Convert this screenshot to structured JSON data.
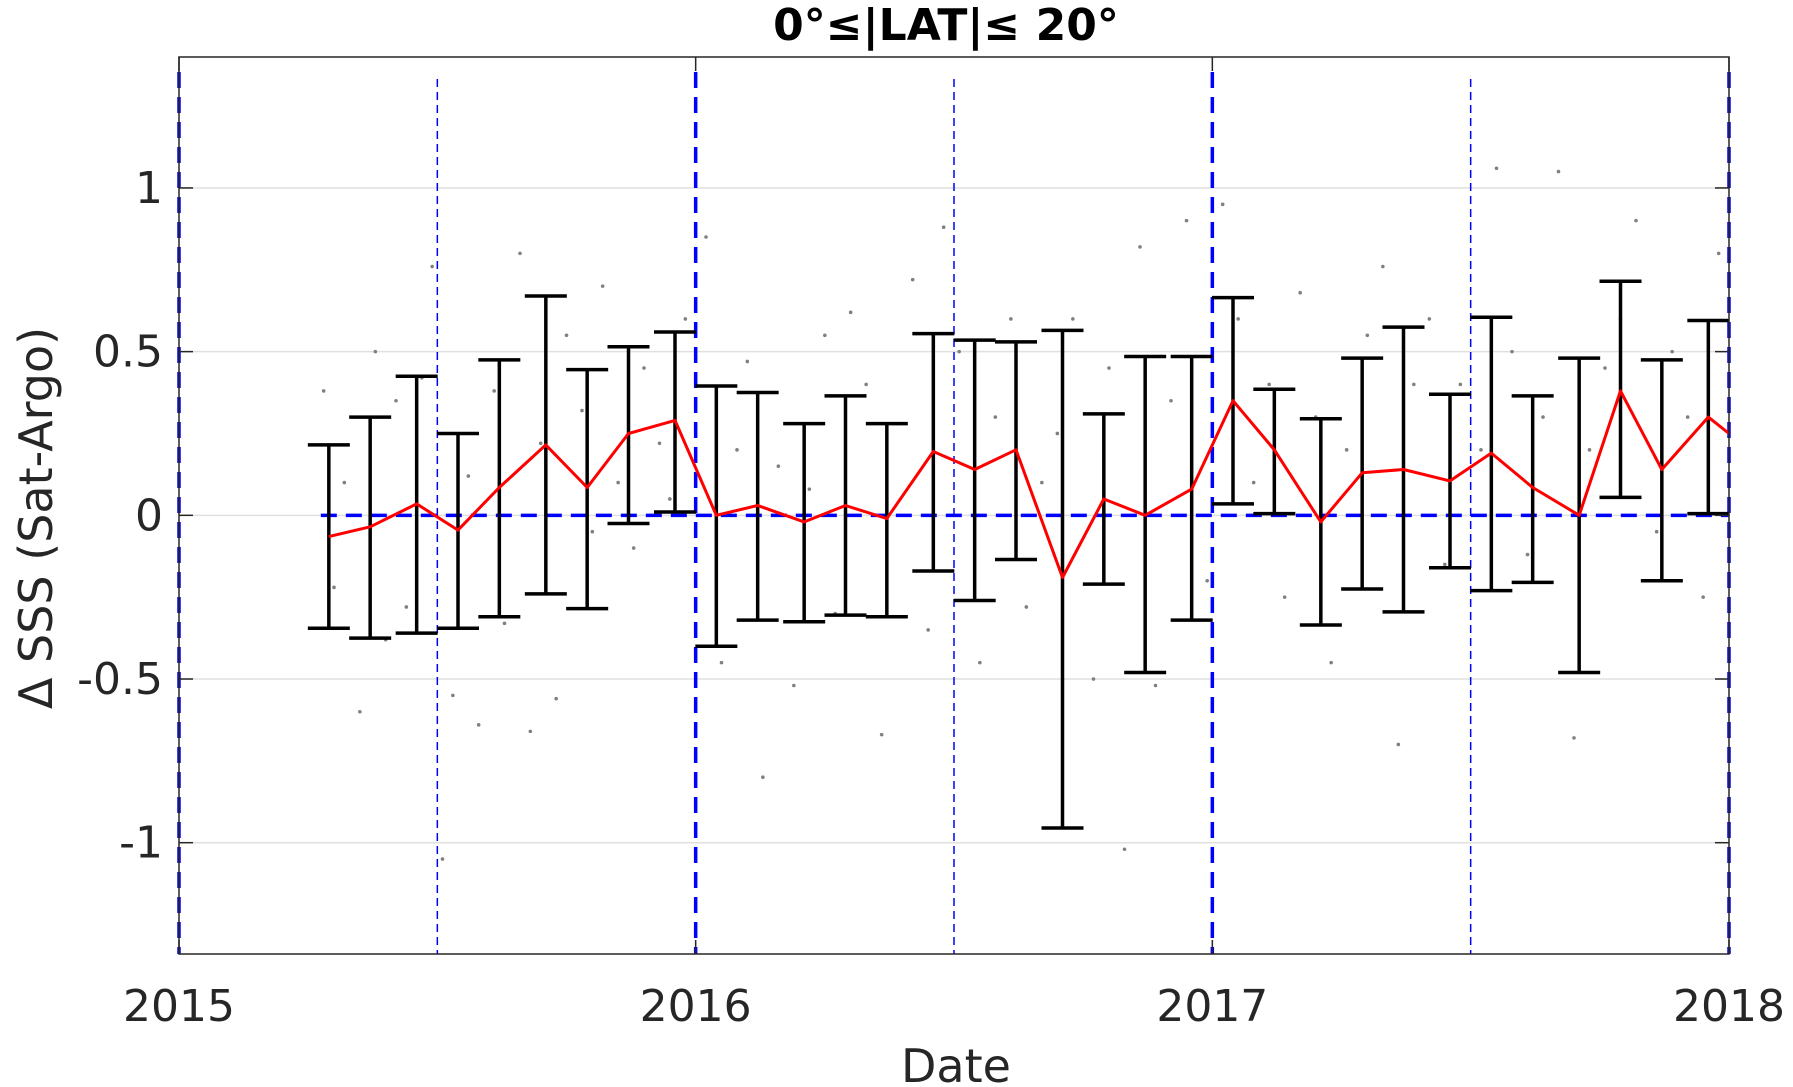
{
  "chart_data": {
    "type": "line",
    "title": "0°≤|LAT|≤ 20°",
    "xlabel": "Date",
    "ylabel": "Δ SSS (Sat-Argo)",
    "x_unit": "year",
    "xlim": [
      2015,
      2018
    ],
    "ylim": [
      -1.34,
      1.4
    ],
    "xticks": [
      2015,
      2016,
      2017,
      2018
    ],
    "xtick_labels": [
      "2015",
      "2016",
      "2017",
      "2018"
    ],
    "yticks": [
      1,
      0.5,
      0,
      -0.5,
      -1
    ],
    "ytick_labels": [
      "1",
      "0.5",
      "0",
      "-0.5",
      "-1"
    ],
    "grid": "horizontal",
    "colors": {
      "mean_line": "#ff0000",
      "error_bars": "#000000",
      "zero_line": "#0000ff",
      "year_lines": "#0000ff",
      "mid_year_lines": "#0000ff",
      "scatter_points": "#808080",
      "grid": "#e0e0e0",
      "axes": "#262626"
    },
    "series": [
      {
        "style": "line",
        "x": [
          2015.29,
          2015.37,
          2015.46,
          2015.54,
          2015.62,
          2015.71,
          2015.79,
          2015.87,
          2015.96,
          2016.04,
          2016.12,
          2016.21,
          2016.29,
          2016.37,
          2016.46,
          2016.54,
          2016.62,
          2016.71,
          2016.79,
          2016.87,
          2016.96,
          2017.04,
          2017.12,
          2017.21,
          2017.29,
          2017.37,
          2017.46,
          2017.54,
          2017.62,
          2017.71,
          2017.79,
          2017.87,
          2017.96,
          2018.0
        ],
        "y": [
          -0.065,
          -0.035,
          0.035,
          -0.045,
          0.085,
          0.215,
          0.085,
          0.25,
          0.29,
          0.0,
          0.03,
          -0.02,
          0.03,
          -0.01,
          0.195,
          0.14,
          0.2,
          -0.19,
          0.05,
          0.0,
          0.08,
          0.35,
          0.2,
          -0.02,
          0.13,
          0.14,
          0.105,
          0.19,
          0.085,
          0.0,
          0.38,
          0.14,
          0.3,
          0.25
        ]
      },
      {
        "style": "errorbar",
        "x": [
          2015.29,
          2015.37,
          2015.46,
          2015.54,
          2015.62,
          2015.71,
          2015.79,
          2015.87,
          2015.96,
          2016.04,
          2016.12,
          2016.21,
          2016.29,
          2016.37,
          2016.46,
          2016.54,
          2016.62,
          2016.71,
          2016.79,
          2016.87,
          2016.96,
          2017.04,
          2017.12,
          2017.21,
          2017.29,
          2017.37,
          2017.46,
          2017.54,
          2017.62,
          2017.71,
          2017.79,
          2017.87,
          2017.96
        ],
        "lower": [
          -0.345,
          -0.375,
          -0.36,
          -0.345,
          -0.31,
          -0.24,
          -0.285,
          -0.025,
          0.01,
          -0.4,
          -0.32,
          -0.325,
          -0.305,
          -0.31,
          -0.17,
          -0.26,
          -0.135,
          -0.955,
          -0.21,
          -0.48,
          -0.32,
          0.035,
          0.005,
          -0.335,
          -0.225,
          -0.295,
          -0.16,
          -0.23,
          -0.205,
          -0.48,
          0.055,
          -0.2,
          0.005
        ],
        "upper": [
          0.215,
          0.3,
          0.425,
          0.25,
          0.475,
          0.67,
          0.445,
          0.515,
          0.56,
          0.395,
          0.375,
          0.28,
          0.365,
          0.28,
          0.555,
          0.535,
          0.53,
          0.565,
          0.31,
          0.485,
          0.485,
          0.665,
          0.385,
          0.295,
          0.48,
          0.575,
          0.37,
          0.605,
          0.365,
          0.48,
          0.715,
          0.475,
          0.595
        ]
      },
      {
        "style": "scatter",
        "x": [
          2015.28,
          2015.3,
          2015.32,
          2015.35,
          2015.38,
          2015.4,
          2015.42,
          2015.44,
          2015.47,
          2015.49,
          2015.51,
          2015.53,
          2015.56,
          2015.58,
          2015.61,
          2015.63,
          2015.66,
          2015.68,
          2015.7,
          2015.73,
          2015.75,
          2015.78,
          2015.8,
          2015.82,
          2015.85,
          2015.88,
          2015.9,
          2015.93,
          2015.95,
          2015.98,
          2016.02,
          2016.05,
          2016.08,
          2016.1,
          2016.13,
          2016.16,
          2016.19,
          2016.22,
          2016.25,
          2016.27,
          2016.3,
          2016.33,
          2016.36,
          2016.39,
          2016.42,
          2016.45,
          2016.48,
          2016.51,
          2016.55,
          2016.58,
          2016.61,
          2016.64,
          2016.67,
          2016.7,
          2016.73,
          2016.77,
          2016.8,
          2016.83,
          2016.86,
          2016.89,
          2016.92,
          2016.95,
          2016.99,
          2017.02,
          2017.05,
          2017.08,
          2017.11,
          2017.14,
          2017.17,
          2017.2,
          2017.23,
          2017.26,
          2017.3,
          2017.33,
          2017.36,
          2017.39,
          2017.42,
          2017.45,
          2017.48,
          2017.52,
          2017.55,
          2017.58,
          2017.61,
          2017.64,
          2017.67,
          2017.7,
          2017.73,
          2017.76,
          2017.79,
          2017.82,
          2017.86,
          2017.89,
          2017.92,
          2017.95,
          2017.98
        ],
        "y": [
          0.38,
          -0.22,
          0.1,
          -0.6,
          0.5,
          -0.38,
          0.35,
          -0.28,
          0.42,
          0.76,
          -1.05,
          -0.55,
          0.12,
          -0.64,
          0.38,
          -0.33,
          0.8,
          -0.66,
          0.22,
          -0.56,
          0.55,
          0.32,
          -0.05,
          0.7,
          0.1,
          -0.1,
          0.45,
          0.22,
          0.05,
          0.6,
          0.85,
          -0.45,
          0.2,
          0.47,
          -0.8,
          0.15,
          -0.52,
          0.08,
          0.55,
          -0.3,
          0.62,
          0.4,
          -0.67,
          0.28,
          0.72,
          -0.35,
          0.88,
          0.5,
          -0.45,
          0.3,
          0.6,
          -0.28,
          0.1,
          0.25,
          0.6,
          -0.5,
          0.45,
          -1.02,
          0.82,
          -0.52,
          0.35,
          0.9,
          -0.2,
          0.95,
          0.6,
          0.1,
          0.4,
          -0.25,
          0.68,
          0.3,
          -0.45,
          0.2,
          0.55,
          0.76,
          -0.7,
          0.4,
          0.6,
          -0.15,
          0.4,
          0.2,
          1.06,
          0.5,
          -0.12,
          0.3,
          1.05,
          -0.68,
          0.2,
          0.45,
          0.6,
          0.9,
          -0.05,
          0.5,
          0.3,
          -0.25,
          0.8
        ]
      }
    ],
    "reference_lines": [
      {
        "orientation": "horizontal",
        "y": 0,
        "style": "dashed"
      },
      {
        "orientation": "vertical",
        "x": 2015.0,
        "style": "dashed-thick"
      },
      {
        "orientation": "vertical",
        "x": 2016.0,
        "style": "dashed-thick"
      },
      {
        "orientation": "vertical",
        "x": 2017.0,
        "style": "dashed-thick"
      },
      {
        "orientation": "vertical",
        "x": 2018.0,
        "style": "dashed-thick"
      },
      {
        "orientation": "vertical",
        "x": 2015.5,
        "style": "dashed-thin"
      },
      {
        "orientation": "vertical",
        "x": 2016.5,
        "style": "dashed-thin"
      },
      {
        "orientation": "vertical",
        "x": 2017.5,
        "style": "dashed-thin"
      }
    ]
  }
}
